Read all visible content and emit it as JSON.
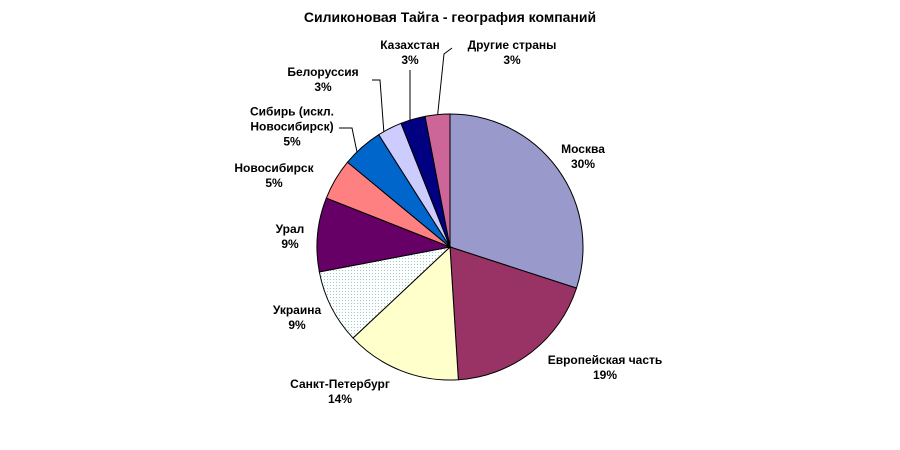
{
  "chart_data": {
    "type": "pie",
    "title": "Силиконовая Тайга - география компаний",
    "categories": [
      "Москва",
      "Европейская часть",
      "Санкт-Петербург",
      "Украина",
      "Урал",
      "Новосибирск",
      "Сибирь (искл. Новосибирск)",
      "Белоруссия",
      "Казахстан",
      "Другие страны"
    ],
    "values": [
      30,
      19,
      14,
      9,
      9,
      5,
      5,
      3,
      3,
      3
    ],
    "value_labels": [
      "30%",
      "19%",
      "14%",
      "9%",
      "9%",
      "5%",
      "5%",
      "3%",
      "3%",
      "3%"
    ],
    "colors": [
      "#9999cc",
      "#993366",
      "#ffffcc",
      "#ccffff",
      "#660066",
      "#ff8080",
      "#0066cc",
      "#ccccff",
      "#000080",
      "#cc6699"
    ]
  }
}
